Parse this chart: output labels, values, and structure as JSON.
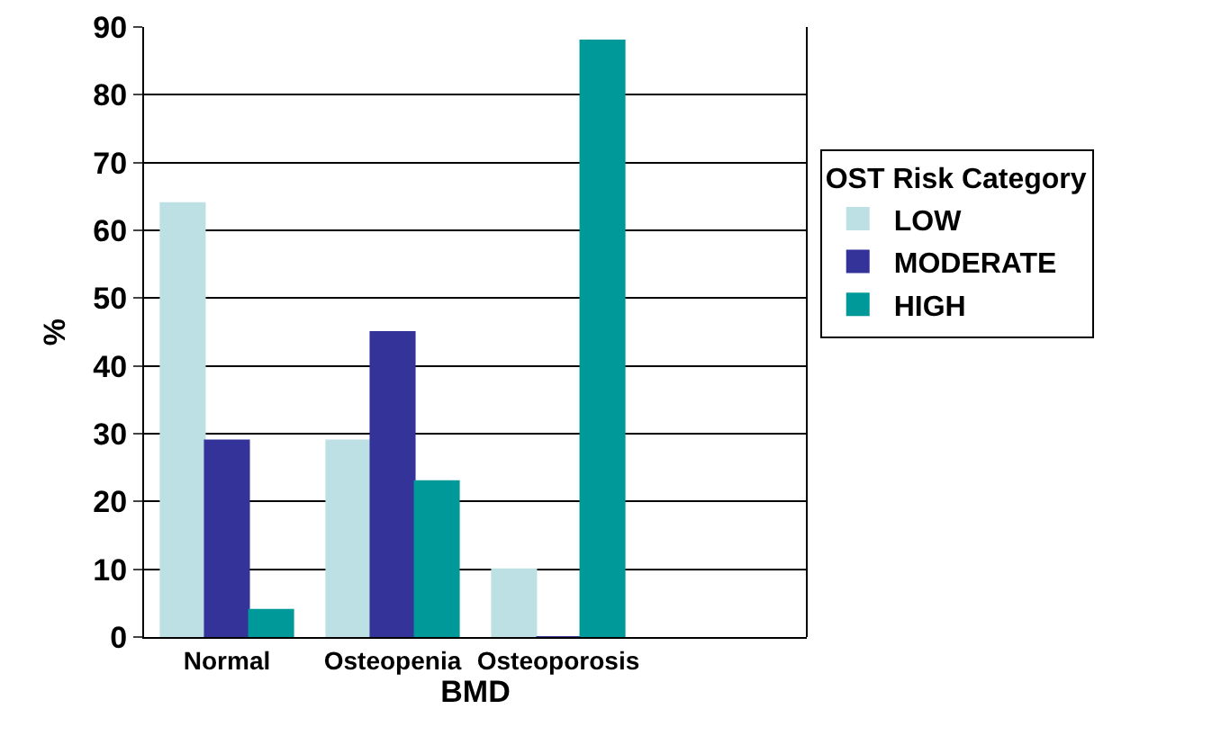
{
  "chart_data": {
    "type": "bar",
    "xlabel": "BMD",
    "ylabel": "%",
    "legend_title": "OST Risk Category",
    "categories": [
      "Normal",
      "Osteopenia",
      "Osteoporosis",
      null
    ],
    "series": [
      {
        "name": "LOW",
        "color": "#bce0e3",
        "values": [
          64,
          29,
          10,
          null
        ]
      },
      {
        "name": "MODERATE",
        "color": "#333399",
        "values": [
          29,
          45,
          0,
          null
        ]
      },
      {
        "name": "HIGH",
        "color": "#009999",
        "values": [
          4,
          23,
          88,
          null
        ]
      }
    ],
    "ylim": [
      0,
      90
    ],
    "yticks": [
      0,
      10,
      20,
      30,
      40,
      50,
      60,
      70,
      80,
      90
    ],
    "grid": "y",
    "legend": "right"
  }
}
